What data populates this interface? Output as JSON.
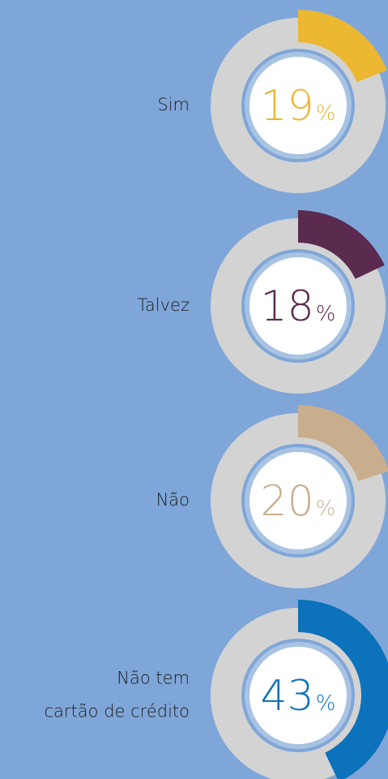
{
  "chart_data": [
    {
      "type": "donut",
      "label": [
        "Sim"
      ],
      "values": [
        19
      ],
      "value_labels": [
        "19%"
      ],
      "color": "#ecb731",
      "ylim": [
        0,
        100
      ]
    },
    {
      "type": "donut",
      "label": [
        "Talvez"
      ],
      "values": [
        18
      ],
      "value_labels": [
        "18%"
      ],
      "color": "#5b2a4f",
      "ylim": [
        0,
        100
      ]
    },
    {
      "type": "donut",
      "label": [
        "Não"
      ],
      "values": [
        20
      ],
      "value_labels": [
        "20%"
      ],
      "color": "#c9ae8e",
      "ylim": [
        0,
        100
      ]
    },
    {
      "type": "donut",
      "label": [
        "Não tem",
        "cartão de crédito"
      ],
      "values": [
        43
      ],
      "value_labels": [
        "43%"
      ],
      "color": "#0b72bb",
      "ylim": [
        0,
        100
      ]
    }
  ]
}
